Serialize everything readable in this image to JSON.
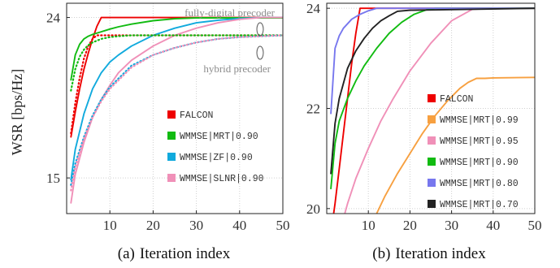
{
  "chart_data": [
    {
      "type": "line",
      "caption_label": "(a)",
      "xlabel": "Iteration index",
      "ylabel": "WSR [bps/Hz]",
      "xlim": [
        0,
        50
      ],
      "ylim": [
        13,
        24.8
      ],
      "x_ticks": [
        10,
        20,
        30,
        40,
        50
      ],
      "y_ticks": [
        15,
        24
      ],
      "grid": true,
      "legend_position": "bottom-right",
      "annotations": [
        "fully-digital precoder",
        "hybrid precoder"
      ],
      "series": [
        {
          "name": "FALCON",
          "color": "#ee0000",
          "style": "solid",
          "x": [
            1,
            2,
            3,
            4,
            5,
            6,
            7,
            8,
            9,
            50
          ],
          "y": [
            17.3,
            18.7,
            20.0,
            21.1,
            22.0,
            22.8,
            23.5,
            24.0,
            24.0,
            24.0
          ]
        },
        {
          "name": "WMMSE|MRT|0.90",
          "color": "#11bb11",
          "style": "solid",
          "x": [
            1,
            2,
            3,
            4,
            5,
            6,
            8,
            10,
            12,
            15,
            20,
            25,
            30,
            50
          ],
          "y": [
            20.5,
            21.9,
            22.5,
            22.8,
            22.95,
            23.05,
            23.2,
            23.35,
            23.48,
            23.63,
            23.82,
            23.93,
            23.98,
            23.98
          ]
        },
        {
          "name": "WMMSE|ZF|0.90",
          "color": "#11aadd",
          "style": "solid",
          "x": [
            1,
            2,
            4,
            6,
            8,
            10,
            12,
            15,
            20,
            25,
            30,
            35,
            40,
            45,
            50
          ],
          "y": [
            14.9,
            16.6,
            18.6,
            20.0,
            20.9,
            21.5,
            21.9,
            22.4,
            23.0,
            23.4,
            23.7,
            23.85,
            23.95,
            24.0,
            24.0
          ]
        },
        {
          "name": "WMMSE|SLNR|0.90",
          "color": "#f090b8",
          "style": "solid",
          "x": [
            1,
            2,
            4,
            6,
            8,
            10,
            12,
            15,
            20,
            25,
            30,
            35,
            40,
            45,
            50
          ],
          "y": [
            13.6,
            15.2,
            17.0,
            18.4,
            19.4,
            20.2,
            20.9,
            21.6,
            22.4,
            23.0,
            23.4,
            23.7,
            23.9,
            24.0,
            24.0
          ]
        },
        {
          "name": "",
          "color": "#ee0000",
          "style": "dotted",
          "x": [
            1,
            2,
            3,
            4,
            5,
            6,
            7,
            8,
            10,
            50
          ],
          "y": [
            17.5,
            19.2,
            20.6,
            21.7,
            22.4,
            22.8,
            23.0,
            23.0,
            23.0,
            23.0
          ]
        },
        {
          "name": "",
          "color": "#11bb11",
          "style": "dotted",
          "x": [
            1,
            2,
            3,
            4,
            5,
            6,
            8,
            10,
            12,
            15,
            20,
            50
          ],
          "y": [
            19.9,
            21.1,
            21.8,
            22.2,
            22.45,
            22.6,
            22.8,
            22.9,
            22.95,
            23.0,
            23.0,
            23.0
          ]
        },
        {
          "name": "",
          "color": "#11aadd",
          "style": "dotted",
          "x": [
            1,
            2,
            4,
            6,
            8,
            10,
            15,
            20,
            25,
            30,
            35,
            40,
            45,
            50
          ],
          "y": [
            14.6,
            15.8,
            17.3,
            18.5,
            19.4,
            20.1,
            21.3,
            21.9,
            22.3,
            22.6,
            22.8,
            22.9,
            22.95,
            23.0
          ]
        },
        {
          "name": "",
          "color": "#f090b8",
          "style": "dotted",
          "x": [
            1,
            2,
            4,
            6,
            8,
            10,
            15,
            20,
            25,
            30,
            35,
            40,
            45,
            50
          ],
          "y": [
            14.3,
            15.6,
            17.2,
            18.4,
            19.3,
            20.0,
            21.2,
            21.9,
            22.3,
            22.6,
            22.8,
            22.9,
            22.95,
            23.0
          ]
        }
      ]
    },
    {
      "type": "line",
      "caption_label": "(b)",
      "xlabel": "Iteration index",
      "xlim": [
        0,
        50
      ],
      "ylim": [
        19.9,
        24.1
      ],
      "x_ticks": [
        10,
        20,
        30,
        40,
        50
      ],
      "y_ticks": [
        20,
        22,
        24
      ],
      "grid": true,
      "legend_position": "bottom-right",
      "series": [
        {
          "name": "FALCON",
          "color": "#ee0000",
          "style": "solid",
          "x": [
            1,
            2,
            3,
            4,
            5,
            6,
            7,
            8,
            9,
            50
          ],
          "y": [
            19.5,
            20.1,
            20.8,
            21.5,
            22.2,
            22.9,
            23.5,
            24.0,
            24.0,
            24.0
          ]
        },
        {
          "name": "WMMSE|MRT|0.99",
          "color": "#f7a040",
          "style": "solid",
          "x": [
            12,
            14,
            17,
            20,
            23,
            26,
            29,
            32,
            34,
            36,
            38,
            40,
            50
          ],
          "y": [
            19.9,
            20.25,
            20.7,
            21.1,
            21.5,
            21.85,
            22.15,
            22.4,
            22.52,
            22.6,
            22.6,
            22.61,
            22.62
          ]
        },
        {
          "name": "WMMSE|MRT|0.95",
          "color": "#f090b8",
          "style": "solid",
          "x": [
            2,
            3,
            5,
            7,
            10,
            13,
            16,
            20,
            25,
            30,
            35,
            40,
            50
          ],
          "y": [
            19.2,
            19.5,
            20.1,
            20.6,
            21.2,
            21.75,
            22.2,
            22.75,
            23.3,
            23.75,
            23.98,
            24.0,
            24.0
          ]
        },
        {
          "name": "WMMSE|MRT|0.90",
          "color": "#11bb11",
          "style": "solid",
          "x": [
            1,
            2,
            3,
            5,
            7,
            9,
            12,
            15,
            18,
            21,
            24,
            26,
            50
          ],
          "y": [
            20.4,
            21.3,
            21.75,
            22.2,
            22.55,
            22.85,
            23.2,
            23.5,
            23.72,
            23.88,
            23.97,
            24.0,
            24.0
          ]
        },
        {
          "name": "WMMSE|MRT|0.80",
          "color": "#7777ee",
          "style": "solid",
          "x": [
            1,
            2,
            3,
            4,
            6,
            8,
            10,
            12,
            50
          ],
          "y": [
            21.9,
            23.2,
            23.45,
            23.6,
            23.78,
            23.88,
            23.95,
            24.0,
            24.0
          ]
        },
        {
          "name": "WMMSE|MRT|0.70",
          "color": "#222222",
          "style": "solid",
          "x": [
            1,
            2,
            3,
            5,
            7,
            9,
            11,
            13,
            15,
            17,
            20,
            50
          ],
          "y": [
            20.7,
            21.7,
            22.2,
            22.8,
            23.15,
            23.4,
            23.6,
            23.75,
            23.85,
            23.94,
            23.96,
            24.0
          ]
        }
      ]
    }
  ]
}
